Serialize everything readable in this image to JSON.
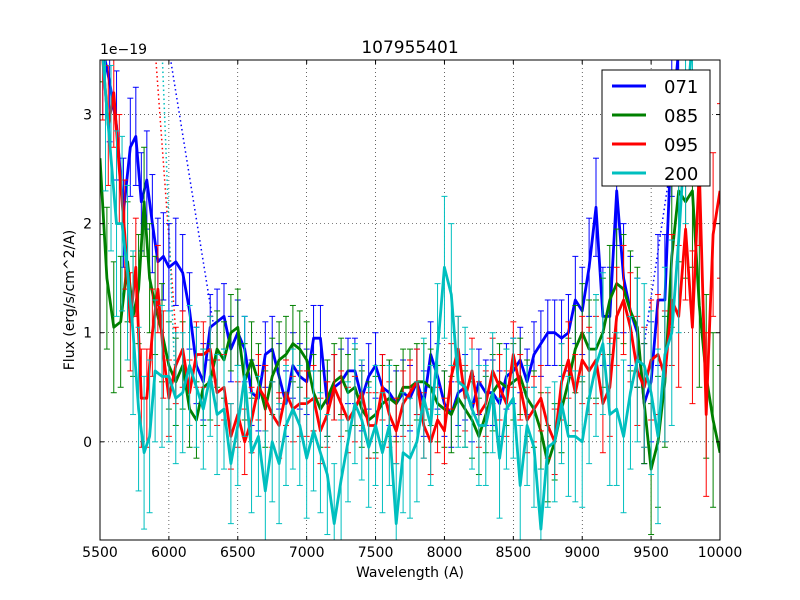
{
  "chart_data": {
    "type": "line",
    "title": "107955401",
    "xlabel": "Wavelength (A)",
    "ylabel": "Flux (erg/s/cm^2/A)",
    "offset_label": "1e−19",
    "xlim": [
      5500,
      10000
    ],
    "ylim": [
      -0.9,
      3.5
    ],
    "grid": true,
    "legend_position": "top-right",
    "x_ticks": [
      5500,
      6000,
      6500,
      7000,
      7500,
      8000,
      8500,
      9000,
      9500,
      10000
    ],
    "x_tick_labels": [
      "5500",
      "6000",
      "6500",
      "7000",
      "7500",
      "8000",
      "8500",
      "9000",
      "9500",
      "10000"
    ],
    "y_ticks": [
      0,
      1,
      2,
      3
    ],
    "y_tick_labels": [
      "0",
      "1",
      "2",
      "3"
    ],
    "series": [
      {
        "name": "071",
        "color": "#0000ff",
        "x": [
          5520,
          5570,
          5620,
          5670,
          5720,
          5760,
          5800,
          5840,
          5880,
          5920,
          5960,
          6000,
          6050,
          6100,
          6150,
          6200,
          6250,
          6300,
          6350,
          6400,
          6450,
          6500,
          6550,
          6600,
          6650,
          6700,
          6750,
          6800,
          6850,
          6900,
          6950,
          7000,
          7050,
          7100,
          7150,
          7200,
          7250,
          7300,
          7350,
          7400,
          7450,
          7500,
          7550,
          7600,
          7650,
          7700,
          7750,
          7800,
          7850,
          7900,
          7950,
          8000,
          8050,
          8100,
          8150,
          8200,
          8250,
          8300,
          8350,
          8400,
          8450,
          8500,
          8550,
          8600,
          8650,
          8700,
          8750,
          8800,
          8850,
          8900,
          8950,
          9000,
          9050,
          9100,
          9150,
          9200,
          9250,
          9300,
          9350,
          9400,
          9450,
          9500,
          9550,
          9600,
          9650,
          9700
        ],
        "y": [
          3.6,
          3.3,
          2.9,
          2.1,
          2.7,
          2.8,
          2.2,
          2.4,
          2.0,
          1.65,
          1.7,
          1.6,
          1.65,
          1.55,
          1.2,
          0.7,
          0.55,
          1.05,
          1.1,
          1.15,
          0.85,
          1.0,
          0.85,
          0.45,
          0.4,
          0.8,
          0.85,
          0.6,
          0.35,
          0.7,
          0.6,
          0.55,
          0.95,
          0.95,
          0.35,
          0.5,
          0.55,
          0.65,
          0.65,
          0.4,
          0.6,
          0.7,
          0.5,
          0.45,
          0.35,
          0.45,
          0.4,
          0.55,
          0.35,
          0.8,
          0.6,
          0.35,
          0.25,
          0.45,
          0.5,
          0.3,
          0.55,
          0.45,
          0.45,
          0.35,
          0.6,
          0.65,
          0.75,
          0.55,
          0.8,
          0.9,
          1.0,
          1.0,
          0.95,
          1.0,
          1.3,
          1.2,
          1.6,
          2.15,
          1.15,
          1.15,
          2.3,
          1.5,
          1.2,
          1.0,
          0.35,
          0.55,
          1.3,
          1.3,
          2.9,
          3.6
        ],
        "err": [
          0.6,
          0.55,
          0.5,
          0.5,
          0.45,
          0.45,
          0.45,
          0.45,
          0.45,
          0.4,
          0.4,
          0.4,
          0.4,
          0.35,
          0.35,
          0.35,
          0.35,
          0.3,
          0.3,
          0.3,
          0.3,
          0.3,
          0.3,
          0.3,
          0.3,
          0.3,
          0.3,
          0.3,
          0.3,
          0.3,
          0.3,
          0.3,
          0.3,
          0.3,
          0.3,
          0.3,
          0.3,
          0.3,
          0.3,
          0.3,
          0.3,
          0.3,
          0.3,
          0.3,
          0.3,
          0.3,
          0.3,
          0.3,
          0.3,
          0.3,
          0.3,
          0.3,
          0.3,
          0.3,
          0.3,
          0.3,
          0.3,
          0.3,
          0.3,
          0.3,
          0.3,
          0.3,
          0.3,
          0.3,
          0.3,
          0.3,
          0.3,
          0.3,
          0.35,
          0.35,
          0.4,
          0.4,
          0.45,
          0.45,
          0.45,
          0.45,
          0.5,
          0.5,
          0.5,
          0.5,
          0.55,
          0.55,
          0.6,
          0.6,
          0.65,
          0.7
        ]
      },
      {
        "name": "085",
        "color": "#008000",
        "x": [
          5500,
          5550,
          5600,
          5650,
          5700,
          5740,
          5780,
          5820,
          5860,
          5900,
          5950,
          6000,
          6050,
          6100,
          6150,
          6200,
          6250,
          6300,
          6350,
          6400,
          6450,
          6500,
          6550,
          6600,
          6650,
          6700,
          6750,
          6800,
          6850,
          6900,
          6950,
          7000,
          7050,
          7100,
          7150,
          7200,
          7250,
          7300,
          7350,
          7400,
          7450,
          7500,
          7550,
          7600,
          7650,
          7700,
          7750,
          7800,
          7850,
          7900,
          7950,
          8000,
          8050,
          8100,
          8150,
          8200,
          8250,
          8300,
          8350,
          8400,
          8450,
          8500,
          8550,
          8600,
          8650,
          8700,
          8750,
          8800,
          8850,
          8900,
          8950,
          9000,
          9050,
          9100,
          9150,
          9200,
          9250,
          9300,
          9350,
          9400,
          9450,
          9500,
          9550,
          9600,
          9650,
          9700,
          9750,
          9800,
          9850,
          9900,
          9950,
          10000
        ],
        "y": [
          2.6,
          1.5,
          1.05,
          1.1,
          1.65,
          1.15,
          1.4,
          2.2,
          1.5,
          1.25,
          1.0,
          0.7,
          0.55,
          0.7,
          0.3,
          0.2,
          0.5,
          0.55,
          0.85,
          0.75,
          1.0,
          1.05,
          0.55,
          0.75,
          0.55,
          0.3,
          0.6,
          0.75,
          0.8,
          0.9,
          0.85,
          0.75,
          0.45,
          0.3,
          0.4,
          0.55,
          0.6,
          0.45,
          0.5,
          0.3,
          0.2,
          0.25,
          0.35,
          0.4,
          0.35,
          0.5,
          0.5,
          0.55,
          0.55,
          0.5,
          0.35,
          0.3,
          0.25,
          0.4,
          0.3,
          0.2,
          0.05,
          0.25,
          0.45,
          0.55,
          0.5,
          0.55,
          0.6,
          0.4,
          0.3,
          0.1,
          -0.2,
          0.0,
          0.3,
          0.55,
          0.85,
          1.0,
          0.85,
          0.85,
          1.0,
          1.3,
          1.45,
          1.4,
          1.2,
          1.05,
          0.35,
          -0.25,
          0.0,
          0.55,
          1.7,
          2.3,
          2.2,
          2.3,
          1.25,
          0.6,
          0.2,
          -0.1
        ],
        "err": [
          0.7,
          0.65,
          0.6,
          0.6,
          0.55,
          0.55,
          0.5,
          0.5,
          0.5,
          0.45,
          0.45,
          0.4,
          0.4,
          0.4,
          0.35,
          0.35,
          0.35,
          0.35,
          0.35,
          0.35,
          0.35,
          0.35,
          0.35,
          0.35,
          0.35,
          0.35,
          0.35,
          0.35,
          0.35,
          0.35,
          0.35,
          0.35,
          0.35,
          0.35,
          0.35,
          0.35,
          0.35,
          0.35,
          0.35,
          0.35,
          0.35,
          0.35,
          0.35,
          0.35,
          0.35,
          0.35,
          0.35,
          0.35,
          0.35,
          0.35,
          0.35,
          0.35,
          0.35,
          0.35,
          0.35,
          0.35,
          0.35,
          0.35,
          0.35,
          0.35,
          0.35,
          0.35,
          0.35,
          0.35,
          0.35,
          0.35,
          0.35,
          0.35,
          0.4,
          0.4,
          0.4,
          0.45,
          0.45,
          0.45,
          0.5,
          0.5,
          0.5,
          0.5,
          0.55,
          0.55,
          0.55,
          0.6,
          0.6,
          0.6,
          0.65,
          0.65,
          0.7,
          0.7,
          0.75,
          0.75,
          0.8,
          0.8
        ]
      },
      {
        "name": "095",
        "color": "#ff0000",
        "x": [
          5520,
          5560,
          5600,
          5640,
          5680,
          5720,
          5760,
          5800,
          5840,
          5880,
          5920,
          5960,
          6000,
          6050,
          6100,
          6150,
          6200,
          6250,
          6300,
          6350,
          6400,
          6450,
          6500,
          6550,
          6600,
          6650,
          6700,
          6750,
          6800,
          6850,
          6900,
          6950,
          7000,
          7050,
          7100,
          7150,
          7200,
          7250,
          7300,
          7350,
          7400,
          7450,
          7500,
          7550,
          7600,
          7650,
          7700,
          7750,
          7800,
          7850,
          7900,
          7950,
          8000,
          8050,
          8100,
          8150,
          8200,
          8250,
          8300,
          8350,
          8400,
          8450,
          8500,
          8550,
          8600,
          8650,
          8700,
          8750,
          8800,
          8850,
          8900,
          8950,
          9000,
          9050,
          9100,
          9150,
          9200,
          9250,
          9300,
          9350,
          9400,
          9450,
          9500,
          9550,
          9600,
          9650,
          9700,
          9750,
          9800,
          9850,
          9900,
          9950,
          10000
        ],
        "y": [
          3.5,
          2.9,
          3.2,
          2.5,
          1.9,
          1.1,
          1.6,
          0.4,
          0.4,
          1.0,
          1.4,
          0.8,
          0.4,
          0.7,
          0.85,
          0.45,
          0.8,
          0.8,
          0.85,
          0.45,
          0.5,
          0.05,
          0.25,
          0.0,
          0.2,
          0.5,
          0.4,
          0.25,
          0.15,
          0.45,
          0.3,
          0.35,
          0.35,
          0.4,
          0.1,
          0.25,
          0.5,
          0.35,
          0.2,
          0.3,
          0.45,
          0.15,
          0.15,
          0.5,
          0.25,
          0.1,
          0.35,
          0.45,
          0.55,
          0.15,
          0.0,
          0.2,
          0.1,
          0.6,
          0.85,
          0.4,
          0.65,
          0.25,
          0.35,
          0.65,
          0.5,
          0.35,
          0.8,
          0.5,
          0.2,
          0.3,
          0.4,
          0.15,
          0.0,
          0.55,
          0.75,
          0.45,
          0.75,
          0.65,
          0.75,
          0.35,
          0.5,
          1.15,
          1.3,
          1.05,
          0.65,
          0.5,
          0.75,
          0.8,
          0.6,
          1.3,
          1.15,
          1.95,
          1.05,
          2.5,
          0.25,
          1.9,
          2.3
        ],
        "err": [
          0.55,
          0.55,
          0.5,
          0.5,
          0.5,
          0.45,
          0.45,
          0.45,
          0.45,
          0.4,
          0.4,
          0.4,
          0.35,
          0.35,
          0.35,
          0.3,
          0.3,
          0.3,
          0.3,
          0.3,
          0.3,
          0.3,
          0.3,
          0.3,
          0.3,
          0.3,
          0.3,
          0.3,
          0.3,
          0.3,
          0.3,
          0.3,
          0.3,
          0.3,
          0.3,
          0.3,
          0.3,
          0.3,
          0.3,
          0.3,
          0.3,
          0.3,
          0.3,
          0.3,
          0.3,
          0.3,
          0.3,
          0.3,
          0.3,
          0.3,
          0.3,
          0.3,
          0.3,
          0.3,
          0.3,
          0.3,
          0.3,
          0.3,
          0.3,
          0.3,
          0.3,
          0.3,
          0.3,
          0.3,
          0.3,
          0.3,
          0.3,
          0.3,
          0.3,
          0.35,
          0.35,
          0.35,
          0.4,
          0.4,
          0.4,
          0.45,
          0.45,
          0.45,
          0.5,
          0.5,
          0.5,
          0.55,
          0.55,
          0.55,
          0.6,
          0.6,
          0.65,
          0.65,
          0.7,
          0.7,
          0.75,
          0.75,
          0.8
        ]
      },
      {
        "name": "200",
        "color": "#00bfbf",
        "x": [
          5500,
          5540,
          5580,
          5620,
          5660,
          5700,
          5740,
          5780,
          5820,
          5860,
          5900,
          5950,
          6000,
          6050,
          6100,
          6150,
          6200,
          6250,
          6300,
          6350,
          6400,
          6450,
          6500,
          6550,
          6600,
          6650,
          6700,
          6750,
          6800,
          6850,
          6900,
          6950,
          7000,
          7050,
          7100,
          7150,
          7200,
          7250,
          7300,
          7350,
          7400,
          7450,
          7500,
          7550,
          7600,
          7650,
          7700,
          7750,
          7800,
          7850,
          7900,
          7950,
          8000,
          8050,
          8100,
          8150,
          8200,
          8250,
          8300,
          8350,
          8400,
          8450,
          8500,
          8550,
          8600,
          8650,
          8700,
          8750,
          8800,
          8850,
          8900,
          8950,
          9000,
          9050,
          9100,
          9150,
          9200,
          9250,
          9300,
          9350,
          9400,
          9450,
          9500,
          9550,
          9600,
          9650,
          9700,
          9750,
          9800
        ],
        "y": [
          3.9,
          3.2,
          2.6,
          2.0,
          2.0,
          1.55,
          1.0,
          0.3,
          -0.1,
          0.05,
          0.65,
          0.6,
          0.6,
          0.4,
          0.45,
          0.7,
          0.5,
          0.3,
          0.6,
          0.25,
          0.3,
          -0.2,
          0.15,
          0.6,
          -0.1,
          0.05,
          -0.45,
          0.0,
          -0.2,
          0.15,
          0.3,
          0.15,
          -0.15,
          0.1,
          -0.1,
          -0.3,
          -0.75,
          -0.35,
          0.0,
          0.35,
          0.2,
          -0.05,
          0.15,
          -0.1,
          0.15,
          -0.75,
          -0.1,
          -0.15,
          0.0,
          0.4,
          0.15,
          0.85,
          1.6,
          1.35,
          0.55,
          0.5,
          0.3,
          0.15,
          0.15,
          0.45,
          -0.15,
          0.3,
          0.4,
          -0.4,
          0.15,
          -0.05,
          -0.8,
          -0.05,
          0.0,
          0.35,
          0.05,
          0.05,
          0.0,
          0.4,
          0.7,
          0.9,
          0.25,
          0.3,
          0.05,
          0.45,
          0.75,
          0.7,
          0.45,
          0.05,
          0.8,
          1.0,
          1.85,
          2.9,
          3.7
        ],
        "err": [
          0.9,
          0.9,
          0.85,
          0.85,
          0.8,
          0.8,
          0.75,
          0.75,
          0.7,
          0.7,
          0.65,
          0.65,
          0.6,
          0.6,
          0.55,
          0.55,
          0.55,
          0.55,
          0.55,
          0.55,
          0.55,
          0.55,
          0.55,
          0.55,
          0.55,
          0.55,
          0.55,
          0.55,
          0.55,
          0.55,
          0.55,
          0.55,
          0.55,
          0.55,
          0.55,
          0.55,
          0.55,
          0.55,
          0.55,
          0.55,
          0.55,
          0.55,
          0.55,
          0.55,
          0.55,
          0.55,
          0.55,
          0.55,
          0.55,
          0.55,
          0.55,
          0.6,
          0.65,
          0.65,
          0.6,
          0.55,
          0.55,
          0.55,
          0.55,
          0.55,
          0.55,
          0.55,
          0.55,
          0.55,
          0.55,
          0.55,
          0.55,
          0.55,
          0.55,
          0.55,
          0.55,
          0.6,
          0.6,
          0.6,
          0.65,
          0.65,
          0.65,
          0.7,
          0.7,
          0.7,
          0.75,
          0.75,
          0.75,
          0.8,
          0.8,
          0.85,
          0.85,
          0.9,
          0.9
        ]
      }
    ],
    "dotted_lines": [
      {
        "color": "#ff0000",
        "x": [
          5900,
          6050
        ],
        "y": [
          3.6,
          1.0
        ]
      },
      {
        "color": "#00bfbf",
        "x": [
          5950,
          6040
        ],
        "y": [
          3.6,
          0.7
        ]
      },
      {
        "color": "#0000ff",
        "x": [
          6000,
          6320
        ],
        "y": [
          3.6,
          1.1
        ]
      },
      {
        "color": "#0000ff",
        "x": [
          9450,
          9650
        ],
        "y": [
          0.9,
          2.6
        ]
      }
    ]
  }
}
